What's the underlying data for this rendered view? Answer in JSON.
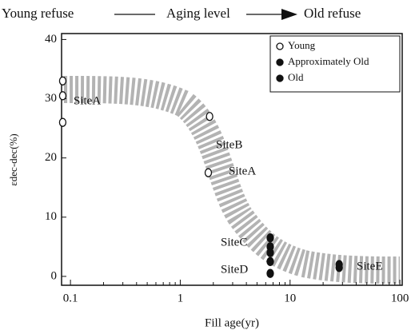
{
  "chart_data": {
    "type": "scatter",
    "header": [
      "Young refuse",
      "Aging level",
      "Old refuse"
    ],
    "xlabel": "Fill age(yr)",
    "ylabel": "εdec-dec(%)",
    "log_x": true,
    "xlim": [
      0.083,
      105
    ],
    "xticks": [
      0.1,
      1,
      10,
      100
    ],
    "ylim": [
      -1.5,
      41
    ],
    "yticks": [
      0,
      10,
      20,
      30,
      40
    ],
    "legend": "upper right",
    "annotations": [
      "SiteA",
      "SiteB",
      "SiteA",
      "SiteC",
      "SiteD",
      "SiteE"
    ],
    "series": [
      {
        "name": "Young",
        "color": "#ffffff",
        "x": [
          0.085,
          0.085,
          0.085,
          1.85,
          1.8
        ],
        "values": [
          33,
          30.5,
          26,
          27,
          17.5
        ]
      },
      {
        "name": "Approximately Old",
        "color": "#111111",
        "x": [
          6.6,
          6.6,
          6.6,
          28
        ],
        "values": [
          6.5,
          5,
          4,
          2
        ]
      },
      {
        "name": "Old",
        "color": "#111111",
        "x": [
          6.6,
          6.6,
          28
        ],
        "values": [
          2.5,
          0.5,
          1.5
        ]
      }
    ]
  }
}
